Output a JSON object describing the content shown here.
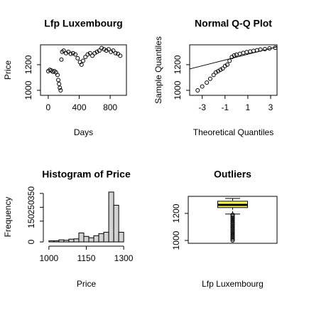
{
  "chart_data": [
    {
      "type": "scatter",
      "title": "Lfp Luxembourg",
      "xlabel": "Days",
      "ylabel": "Price",
      "x": [
        0,
        20,
        40,
        60,
        80,
        100,
        120,
        130,
        140,
        150,
        160,
        170,
        180,
        200,
        230,
        260,
        290,
        320,
        350,
        380,
        410,
        430,
        450,
        480,
        510,
        540,
        570,
        600,
        630,
        660,
        690,
        720,
        750,
        780,
        810,
        840,
        870,
        900,
        930
      ],
      "values": [
        1150,
        1160,
        1155,
        1145,
        1150,
        1140,
        1120,
        1080,
        1050,
        1020,
        1000,
        1240,
        1300,
        1310,
        1290,
        1300,
        1285,
        1290,
        1280,
        1250,
        1220,
        1200,
        1230,
        1260,
        1280,
        1290,
        1270,
        1290,
        1300,
        1310,
        1330,
        1320,
        1310,
        1320,
        1300,
        1310,
        1290,
        1285,
        1270
      ],
      "xlim": [
        -100,
        1010
      ],
      "xticks": [
        0,
        400,
        800
      ],
      "ylim": [
        961,
        1355
      ],
      "yticks": [
        1000,
        1200
      ]
    },
    {
      "type": "qq",
      "title": "Normal Q-Q Plot",
      "xlabel": "Theoretical Quantiles",
      "ylabel": "Sample Quantiles",
      "x": [
        -3.4,
        -3.0,
        -2.6,
        -2.3,
        -2.0,
        -1.8,
        -1.6,
        -1.4,
        -1.2,
        -1.0,
        -0.8,
        -0.6,
        -0.4,
        -0.2,
        0,
        0.3,
        0.6,
        0.9,
        1.2,
        1.5,
        1.8,
        2.1,
        2.5,
        2.9,
        3.4
      ],
      "values": [
        1000,
        1030,
        1060,
        1090,
        1120,
        1140,
        1150,
        1160,
        1170,
        1190,
        1200,
        1230,
        1260,
        1272,
        1278,
        1285,
        1292,
        1298,
        1303,
        1308,
        1313,
        1318,
        1322,
        1327,
        1332
      ],
      "qq_line": {
        "intercept": 1259,
        "slope": 22.5
      },
      "xlim": [
        -4.1,
        3.56
      ],
      "xticks": [
        -3,
        -1,
        1,
        3
      ],
      "ylim": [
        961,
        1355
      ],
      "yticks": [
        1000,
        1200
      ]
    },
    {
      "type": "histogram",
      "title": "Histogram of Price",
      "xlabel": "Price",
      "ylabel": "Frequency",
      "color": "#d3d3d3",
      "bins": [
        1000,
        1020,
        1040,
        1060,
        1080,
        1100,
        1120,
        1140,
        1160,
        1180,
        1200,
        1220,
        1240,
        1260,
        1280,
        1300
      ],
      "values": [
        8,
        8,
        15,
        12,
        20,
        22,
        65,
        40,
        30,
        45,
        60,
        70,
        360,
        265,
        70
      ],
      "xlim": [
        989,
        1311
      ],
      "xticks": [
        1000,
        1150,
        1300
      ],
      "ylim": [
        -10,
        370
      ],
      "yticks": [
        0,
        150,
        250,
        350
      ]
    },
    {
      "type": "box",
      "title": "Outliers",
      "xlabel": "Lfp Luxembourg",
      "color": "#ffff66",
      "min": 1195,
      "q1": 1243,
      "median": 1263,
      "q3": 1290,
      "max": 1310,
      "outliers": [
        1190,
        1180,
        1170,
        1160,
        1150,
        1140,
        1130,
        1120,
        1110,
        1100,
        1090,
        1080,
        1070,
        1060,
        1050,
        1040,
        1030,
        1020,
        1010,
        1000
      ],
      "ylim": [
        979,
        1326
      ],
      "yticks": [
        1000,
        1200
      ]
    }
  ]
}
